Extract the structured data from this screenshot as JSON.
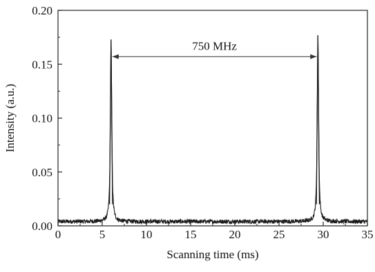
{
  "chart_data": {
    "type": "line",
    "xlabel": "Scanning time (ms)",
    "ylabel": "Intensity (a.u.)",
    "xlim": [
      0,
      35
    ],
    "ylim": [
      0,
      0.2
    ],
    "x_ticks": [
      "0",
      "5",
      "10",
      "15",
      "20",
      "25",
      "30",
      "35"
    ],
    "y_ticks": [
      "0.00",
      "0.05",
      "0.10",
      "0.15",
      "0.20"
    ],
    "grid": false,
    "legend": "none",
    "series": [
      {
        "color": "#1a1a1a",
        "baseline": 0.004,
        "peaks": [
          {
            "x": 6.0,
            "y": 0.173
          },
          {
            "x": 29.4,
            "y": 0.177
          }
        ]
      }
    ],
    "annotations": [
      {
        "text": "750 MHz",
        "x_start": 6.0,
        "x_end": 29.4,
        "y": 0.157
      }
    ]
  }
}
